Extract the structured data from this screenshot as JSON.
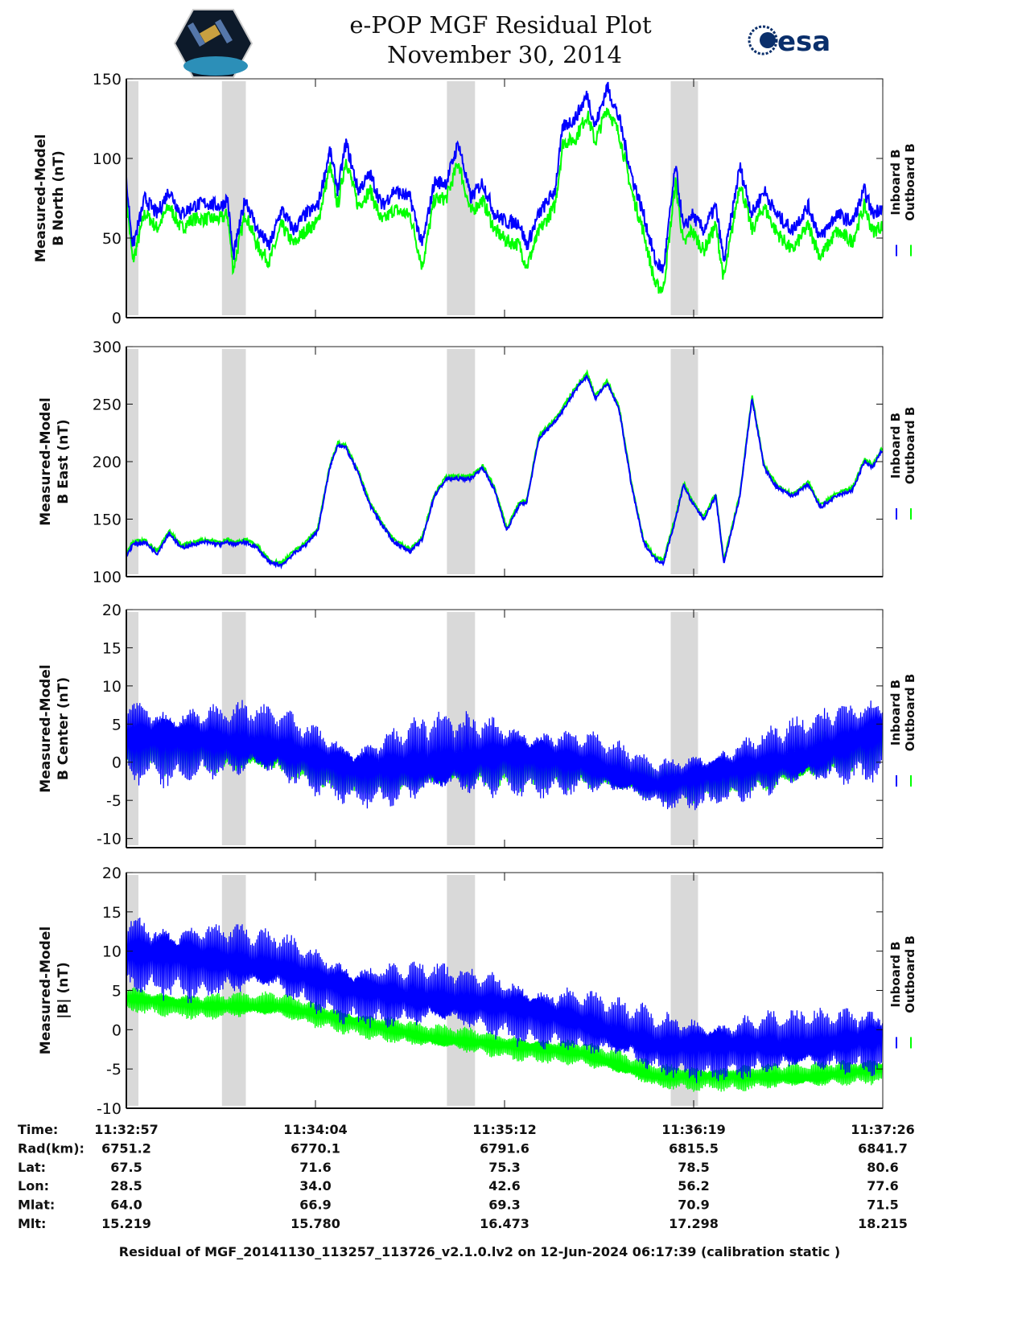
{
  "header": {
    "title": "e-POP MGF Residual Plot",
    "date": "November 30, 2014",
    "left_logo": "CASSIOPE",
    "right_logo": "esa"
  },
  "colors": {
    "inboard": "#0000ff",
    "outboard": "#00ff00",
    "shade": "#d9d9d9"
  },
  "chart_data": {
    "type": "line",
    "x_unit": "seconds since 11:32:57",
    "xlim": [
      0,
      269
    ],
    "shaded_intervals": [
      [
        0,
        4.3
      ],
      [
        34,
        42.5
      ],
      [
        114,
        124
      ],
      [
        193.6,
        203.3
      ]
    ],
    "legend": [
      "Inboard B",
      "Outboard B"
    ],
    "legend_placement": "right",
    "panels": [
      {
        "ylabel": [
          "Measured-Model",
          "B North (nT)"
        ],
        "ylim": [
          0,
          150
        ],
        "yticks": [
          "0",
          "50",
          "100",
          "150"
        ],
        "ytick_values": [
          0,
          50,
          100,
          150
        ],
        "kind": "smooth",
        "t": [
          0,
          2.3,
          6.6,
          10.9,
          15.2,
          19.5,
          23.7,
          28.0,
          33.7,
          36.0,
          38.0,
          42.3,
          46.6,
          50.9,
          55.2,
          59.5,
          63.8,
          68.1,
          72.4,
          75.2,
          78.1,
          82.4,
          86.7,
          90.9,
          95.2,
          101.0,
          105.2,
          109.5,
          113.8,
          118.1,
          122.4,
          126.7,
          131.0,
          135.3,
          139.6,
          142.4,
          146.7,
          152.4,
          155.3,
          159.6,
          163.9,
          166.7,
          171.0,
          175.3,
          179.6,
          183.9,
          188.2,
          191.0,
          195.3,
          198.2,
          201.0,
          205.3,
          209.6,
          212.5,
          218.2,
          222.5,
          226.8,
          231.1,
          236.8,
          242.5,
          246.8,
          252.5,
          258.2,
          262.5,
          265.4,
          268.8
        ],
        "inboard": [
          85,
          45,
          75,
          65,
          80,
          65,
          70,
          72,
          70,
          75,
          38,
          75,
          55,
          45,
          68,
          55,
          65,
          70,
          105,
          80,
          110,
          80,
          90,
          70,
          80,
          75,
          45,
          85,
          85,
          110,
          75,
          85,
          65,
          60,
          60,
          45,
          65,
          80,
          120,
          125,
          140,
          120,
          145,
          125,
          90,
          65,
          35,
          30,
          95,
          55,
          65,
          55,
          70,
          35,
          95,
          65,
          80,
          65,
          55,
          70,
          50,
          65,
          60,
          80,
          65,
          70
        ],
        "outboard": [
          76,
          35,
          66,
          56,
          70,
          56,
          62,
          62,
          62,
          65,
          30,
          66,
          45,
          35,
          58,
          46,
          55,
          60,
          95,
          70,
          100,
          70,
          80,
          60,
          68,
          64,
          32,
          74,
          75,
          98,
          66,
          74,
          55,
          48,
          46,
          32,
          54,
          70,
          110,
          112,
          128,
          110,
          132,
          115,
          80,
          54,
          20,
          18,
          85,
          45,
          55,
          42,
          58,
          24,
          85,
          55,
          70,
          54,
          42,
          58,
          38,
          54,
          48,
          70,
          54,
          58
        ]
      },
      {
        "ylabel": [
          "Measured-Model",
          "B East (nT)"
        ],
        "ylim": [
          100,
          300
        ],
        "yticks": [
          "100",
          "150",
          "200",
          "250",
          "300"
        ],
        "ytick_values": [
          100,
          150,
          200,
          250,
          300
        ],
        "kind": "smooth",
        "t": [
          0,
          2.3,
          6.6,
          10.9,
          15.2,
          19.5,
          23.7,
          28.0,
          33.7,
          36.0,
          38.0,
          42.3,
          46.6,
          50.9,
          55.2,
          59.5,
          63.8,
          68.1,
          72.4,
          75.2,
          78.1,
          82.4,
          86.7,
          90.9,
          95.2,
          101.0,
          105.2,
          109.5,
          113.8,
          118.1,
          122.4,
          126.7,
          131.0,
          135.3,
          139.6,
          142.4,
          146.7,
          152.4,
          155.3,
          159.6,
          163.9,
          166.7,
          171.0,
          175.3,
          179.6,
          183.9,
          188.2,
          191.0,
          195.3,
          198.2,
          201.0,
          205.3,
          209.6,
          212.5,
          218.2,
          222.5,
          226.8,
          231.1,
          236.8,
          242.5,
          246.8,
          252.5,
          258.2,
          262.5,
          265.4,
          268.8
        ],
        "inboard": [
          118,
          128,
          130,
          120,
          138,
          125,
          128,
          130,
          128,
          130,
          128,
          130,
          125,
          112,
          110,
          120,
          128,
          140,
          195,
          215,
          212,
          190,
          162,
          145,
          130,
          122,
          132,
          170,
          185,
          185,
          185,
          195,
          175,
          140,
          162,
          165,
          220,
          235,
          245,
          262,
          275,
          255,
          268,
          245,
          180,
          130,
          115,
          112,
          150,
          180,
          165,
          150,
          170,
          112,
          170,
          255,
          195,
          178,
          170,
          180,
          160,
          170,
          175,
          200,
          195,
          210
        ],
        "outboard": [
          120,
          130,
          132,
          122,
          140,
          127,
          130,
          132,
          130,
          132,
          130,
          132,
          127,
          114,
          112,
          122,
          130,
          142,
          197,
          217,
          214,
          192,
          164,
          147,
          132,
          124,
          134,
          172,
          187,
          187,
          187,
          197,
          177,
          142,
          164,
          167,
          222,
          237,
          247,
          264,
          277,
          257,
          270,
          247,
          182,
          132,
          117,
          114,
          152,
          182,
          167,
          152,
          172,
          114,
          172,
          257,
          197,
          180,
          172,
          182,
          162,
          172,
          177,
          202,
          197,
          212
        ]
      },
      {
        "ylabel": [
          "Measured-Model",
          "B Center (nT)"
        ],
        "ylim": [
          -11.2,
          20
        ],
        "yticks": [
          "-10",
          "-5",
          "0",
          "5",
          "10",
          "15",
          "20"
        ],
        "ytick_values": [
          -10,
          -5,
          0,
          5,
          10,
          15,
          20
        ],
        "kind": "oscillating",
        "t": [
          0,
          27,
          54,
          81,
          108,
          135,
          162,
          189,
          216,
          243,
          269
        ],
        "inboard_mean": [
          3,
          3,
          2,
          -1,
          0,
          1,
          0,
          -3,
          -1,
          1,
          4
        ],
        "inboard_amplitude": [
          7,
          6,
          6,
          5,
          7,
          6,
          5,
          4,
          5,
          6,
          7
        ],
        "outboard_mean": [
          2,
          2,
          1,
          -2,
          -1,
          0,
          -1,
          -3,
          -2,
          0,
          3
        ],
        "outboard_amplitude": [
          4,
          4,
          4,
          3,
          4,
          4,
          3,
          3,
          3,
          4,
          4
        ]
      },
      {
        "ylabel": [
          "Measured-Model",
          "|B| (nT)"
        ],
        "ylim": [
          -10,
          20
        ],
        "yticks": [
          "-10",
          "-5",
          "0",
          "5",
          "10",
          "15",
          "20"
        ],
        "ytick_values": [
          -10,
          -5,
          0,
          5,
          10,
          15,
          20
        ],
        "kind": "oscillating",
        "t": [
          0,
          27,
          54,
          81,
          108,
          135,
          162,
          189,
          216,
          243,
          269
        ],
        "inboard_mean": [
          10,
          9,
          8,
          5,
          4,
          3,
          1,
          -2,
          -2,
          -2,
          -1
        ],
        "inboard_amplitude": [
          6,
          6,
          5,
          5,
          5,
          5,
          5,
          5,
          5,
          5,
          5
        ],
        "outboard_mean": [
          4,
          3,
          3,
          1,
          -1,
          -2,
          -3,
          -6,
          -6,
          -6,
          -5
        ],
        "outboard_amplitude": [
          2,
          2,
          2,
          2,
          2,
          2,
          2,
          2,
          2,
          2,
          2
        ]
      }
    ],
    "xtick_values": [
      0,
      67.25,
      134.5,
      201.75,
      269
    ]
  },
  "table": {
    "rows": [
      {
        "label": "Time:",
        "values": [
          "11:32:57",
          "11:34:04",
          "11:35:12",
          "11:36:19",
          "11:37:26"
        ]
      },
      {
        "label": "Rad(km):",
        "values": [
          "6751.2",
          "6770.1",
          "6791.6",
          "6815.5",
          "6841.7"
        ]
      },
      {
        "label": "Lat:",
        "values": [
          "67.5",
          "71.6",
          "75.3",
          "78.5",
          "80.6"
        ]
      },
      {
        "label": "Lon:",
        "values": [
          "28.5",
          "34.0",
          "42.6",
          "56.2",
          "77.6"
        ]
      },
      {
        "label": "Mlat:",
        "values": [
          "64.0",
          "66.9",
          "69.3",
          "70.9",
          "71.5"
        ]
      },
      {
        "label": "Mlt:",
        "values": [
          "15.219",
          "15.780",
          "16.473",
          "17.298",
          "18.215"
        ]
      }
    ]
  },
  "footer": "Residual of MGF_20141130_113257_113726_v2.1.0.lv2 on 12-Jun-2024 06:17:39 (calibration static )"
}
